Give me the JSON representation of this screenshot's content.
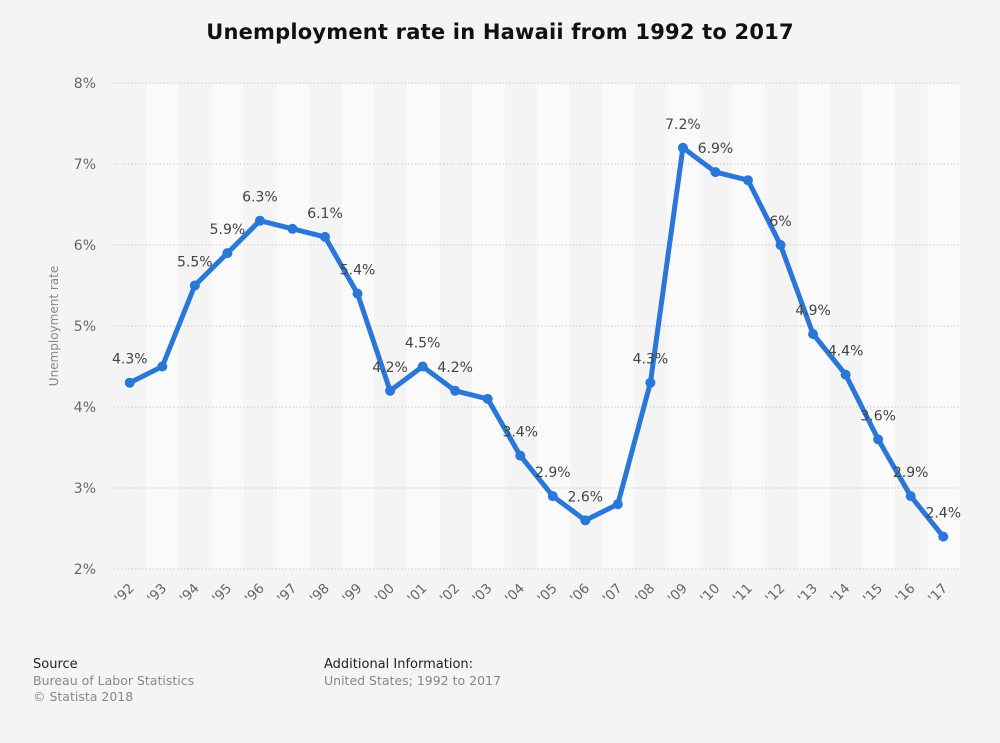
{
  "chart_data": {
    "type": "line",
    "title": "Unemployment rate in Hawaii from 1992 to 2017",
    "ylabel": "Unemployment rate",
    "xlabel": "",
    "categories": [
      "'92",
      "'93",
      "'94",
      "'95",
      "'96",
      "'97",
      "'98",
      "'99",
      "'00",
      "'01",
      "'02",
      "'03",
      "'04",
      "'05",
      "'06",
      "'07",
      "'08",
      "'09",
      "'10",
      "'11",
      "'12",
      "'13",
      "'14",
      "'15",
      "'16",
      "'17"
    ],
    "series": [
      {
        "values": [
          4.3,
          4.5,
          5.5,
          5.9,
          6.3,
          6.2,
          6.1,
          5.4,
          4.2,
          4.5,
          4.2,
          4.1,
          3.4,
          2.9,
          2.6,
          2.8,
          4.3,
          7.2,
          6.9,
          6.8,
          6.0,
          4.9,
          4.4,
          3.6,
          2.9,
          2.4
        ],
        "labels": [
          "4.3%",
          "",
          "5.5%",
          "5.9%",
          "6.3%",
          "",
          "6.1%",
          "5.4%",
          "4.2%",
          "4.5%",
          "4.2%",
          "",
          "3.4%",
          "2.9%",
          "2.6%",
          "",
          "4.3%",
          "7.2%",
          "6.9%",
          "",
          "6%",
          "4.9%",
          "4.4%",
          "3.6%",
          "2.9%",
          "2.4%"
        ]
      }
    ],
    "ylim": [
      2,
      8
    ],
    "yticks": [
      2,
      3,
      4,
      5,
      6,
      7,
      8
    ],
    "ytick_labels": [
      "2%",
      "3%",
      "4%",
      "5%",
      "6%",
      "7%",
      "8%"
    ],
    "grid": true,
    "legend": "none",
    "line_color": "#2a77d8"
  },
  "footer": {
    "source_heading": "Source",
    "source_lines": [
      "Bureau of Labor Statistics",
      "© Statista 2018"
    ],
    "info_heading": "Additional Information:",
    "info_lines": [
      "United States; 1992 to 2017"
    ]
  }
}
